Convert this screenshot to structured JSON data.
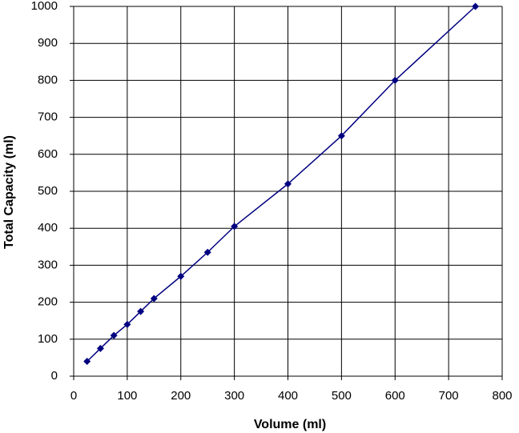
{
  "chart_data": {
    "type": "line",
    "x_label": "Volume (ml)",
    "y_label": "Total Capacity (ml)",
    "series": [
      {
        "color": "#000080",
        "x": [
          25,
          50,
          75,
          100,
          125,
          150,
          200,
          250,
          300,
          400,
          500,
          600,
          750
        ],
        "values": [
          40,
          75,
          110,
          140,
          175,
          210,
          270,
          335,
          405,
          520,
          650,
          800,
          1000
        ]
      }
    ],
    "xlim": [
      0,
      800
    ],
    "xticks": [
      0,
      100,
      200,
      300,
      400,
      500,
      600,
      700,
      800
    ],
    "ylim": [
      0,
      1000
    ],
    "yticks": [
      0,
      100,
      200,
      300,
      400,
      500,
      600,
      700,
      800,
      900,
      1000
    ],
    "grid": true
  }
}
